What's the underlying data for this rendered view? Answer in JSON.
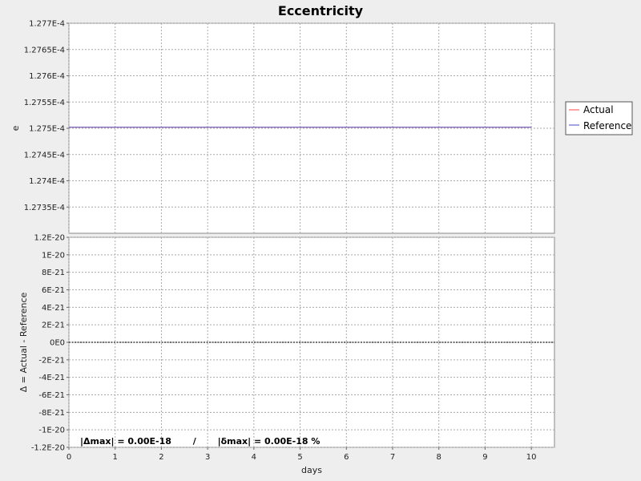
{
  "chart_data": {
    "type": "line",
    "title": "Eccentricity",
    "top_panel": {
      "ylabel": "e",
      "ylim": [
        0.0001273,
        0.0001277
      ],
      "yticks": [
        0.00012735,
        0.0001274,
        0.00012745,
        0.0001275,
        0.00012755,
        0.0001276,
        0.00012765,
        0.0001277
      ],
      "ytick_labels": [
        "1.2735E-4",
        "1.274E-4",
        "1.2745E-4",
        "1.275E-4",
        "1.2755E-4",
        "1.276E-4",
        "1.2765E-4",
        "1.277E-4"
      ],
      "series": [
        {
          "name": "Actual",
          "color": "#ff6666",
          "x": [
            0,
            10
          ],
          "y": [
            0.000127502,
            0.000127502
          ]
        },
        {
          "name": "Reference",
          "color": "#6666cc",
          "x": [
            0,
            10
          ],
          "y": [
            0.000127502,
            0.000127502
          ]
        }
      ]
    },
    "bottom_panel": {
      "ylabel": "Δ = Actual - Reference",
      "ylim": [
        -1.2e-20,
        1.2e-20
      ],
      "yticks": [
        -1.2e-20,
        -1e-20,
        -8e-21,
        -6e-21,
        -4e-21,
        -2e-21,
        0,
        2e-21,
        4e-21,
        6e-21,
        8e-21,
        1e-20,
        1.2e-20
      ],
      "ytick_labels": [
        "-1.2E-20",
        "-1E-20",
        "-8E-21",
        "-6E-21",
        "-4E-21",
        "-2E-21",
        "0E0",
        "2E-21",
        "4E-21",
        "6E-21",
        "8E-21",
        "1E-20",
        "1.2E-20"
      ],
      "series": [
        {
          "name": "Δ",
          "color": "#444444",
          "x": [
            0,
            10.5
          ],
          "y": [
            0,
            0
          ]
        }
      ],
      "stats_text": "|Δmax| = 0.00E-18       /       |δmax| = 0.00E-18 %"
    },
    "xlabel": "days",
    "xlim": [
      0,
      10.5
    ],
    "xticks": [
      0,
      1,
      2,
      3,
      4,
      5,
      6,
      7,
      8,
      9,
      10
    ],
    "xtick_labels": [
      "0",
      "1",
      "2",
      "3",
      "4",
      "5",
      "6",
      "7",
      "8",
      "9",
      "10"
    ],
    "grid": true,
    "legend_position": "right"
  }
}
